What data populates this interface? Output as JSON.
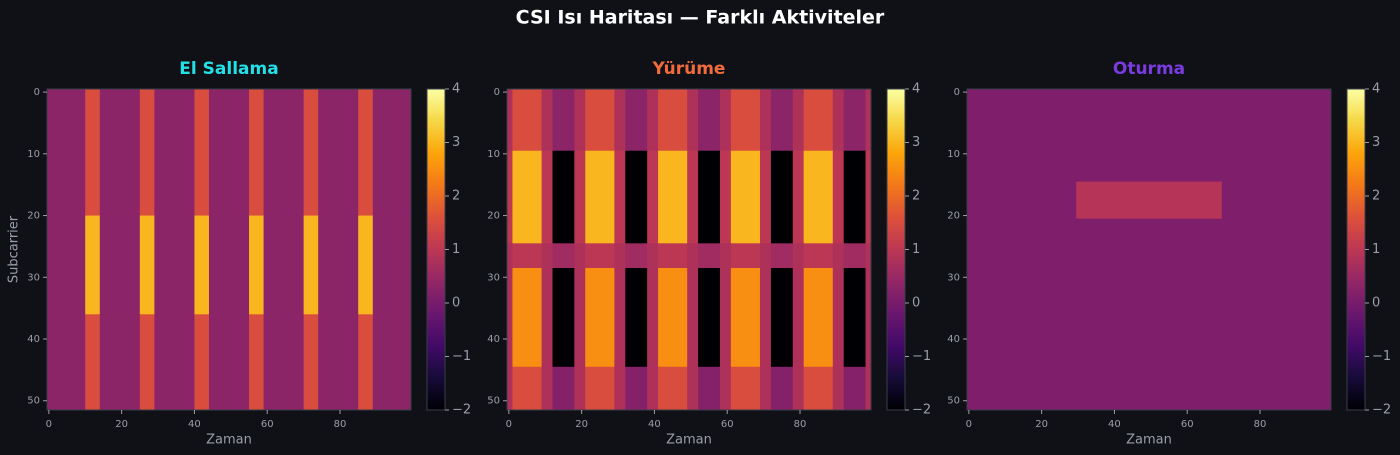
{
  "title": "CSI Isı Haritası — Farklı Aktiviteler",
  "chart_data": [
    {
      "type": "heatmap",
      "title": "El Sallama",
      "title_color": "#22e0e6",
      "xlabel": "Zaman",
      "ylabel": "Subcarrier",
      "colormap": "inferno",
      "clim": [
        -2,
        4
      ],
      "x_edges": [
        -0.5,
        10,
        14,
        25,
        29,
        40,
        44,
        55,
        59,
        70,
        74,
        85,
        89,
        99.5
      ],
      "y_edges": [
        -0.5,
        20,
        36,
        51.5
      ],
      "z": [
        [
          0.3,
          1.5,
          0.3,
          1.5,
          0.3,
          1.5,
          0.3,
          1.5,
          0.3,
          1.5,
          0.3,
          1.5,
          0.3
        ],
        [
          0.3,
          3,
          0.3,
          3,
          0.3,
          3,
          0.3,
          3,
          0.3,
          3,
          0.3,
          3,
          0.3
        ],
        [
          0.3,
          1.5,
          0.3,
          1.5,
          0.3,
          1.5,
          0.3,
          1.5,
          0.3,
          1.5,
          0.3,
          1.5,
          0.3
        ]
      ],
      "xlim": [
        -0.5,
        99.5
      ],
      "ylim": [
        51.5,
        -0.5
      ],
      "xticks": [
        0,
        20,
        40,
        60,
        80
      ],
      "yticks": [
        0,
        10,
        20,
        30,
        40,
        50
      ],
      "cticks": [
        {
          "value": -2,
          "label": "−2"
        },
        {
          "value": -1,
          "label": "−1"
        },
        0,
        1,
        2,
        3,
        4
      ]
    },
    {
      "type": "heatmap",
      "title": "Yürüme",
      "title_color": "#f26b3a",
      "xlabel": "Zaman",
      "colormap": "inferno",
      "clim": [
        -2,
        4
      ],
      "x_edges": [
        -0.5,
        1,
        9,
        12,
        18,
        21,
        29,
        32,
        38,
        41,
        49,
        52,
        58,
        61,
        69,
        72,
        78,
        81,
        89,
        92,
        98,
        99.5
      ],
      "y_edges": [
        -0.5,
        9.5,
        24.5,
        28.5,
        44.5,
        51.5
      ],
      "z": [
        [
          0.8,
          1.5,
          0.8,
          0.3,
          0.8,
          1.5,
          0.8,
          0.3,
          0.8,
          1.5,
          0.8,
          0.3,
          0.8,
          1.5,
          0.8,
          0.3,
          0.8,
          1.5,
          0.8,
          0.3,
          0.8
        ],
        [
          1,
          3,
          1,
          -2,
          1,
          3,
          1,
          -2,
          1,
          3,
          1,
          -2,
          1,
          3,
          1,
          -2,
          1,
          3,
          1,
          -2,
          1
        ],
        [
          0.8,
          1,
          0.8,
          0.6,
          0.8,
          1,
          0.8,
          0.6,
          0.8,
          1,
          0.8,
          0.6,
          0.8,
          1,
          0.8,
          0.6,
          0.8,
          1,
          0.8,
          0.6,
          0.8
        ],
        [
          0.8,
          2.5,
          0.8,
          -2,
          0.8,
          2.5,
          0.8,
          -2,
          0.8,
          2.5,
          0.8,
          -2,
          0.8,
          2.5,
          0.8,
          -2,
          0.8,
          2.5,
          0.8,
          -2,
          0.8
        ],
        [
          0.8,
          1.5,
          0.8,
          0.2,
          0.8,
          1.5,
          0.8,
          0.2,
          0.8,
          1.5,
          0.8,
          0.2,
          0.8,
          1.5,
          0.8,
          0.2,
          0.8,
          1.5,
          0.8,
          0.2,
          0.8
        ]
      ],
      "xlim": [
        -0.5,
        99.5
      ],
      "ylim": [
        51.5,
        -0.5
      ],
      "xticks": [
        0,
        20,
        40,
        60,
        80
      ],
      "yticks": [
        0,
        10,
        20,
        30,
        40,
        50
      ],
      "cticks": [
        {
          "value": -2,
          "label": "−2"
        },
        {
          "value": -1,
          "label": "−1"
        },
        0,
        1,
        2,
        3,
        4
      ]
    },
    {
      "type": "heatmap",
      "title": "Oturma",
      "title_color": "#7a3be0",
      "xlabel": "Zaman",
      "colormap": "inferno",
      "clim": [
        -2,
        4
      ],
      "x_edges": [
        -0.5,
        29.5,
        69.5,
        99.5
      ],
      "y_edges": [
        -0.5,
        14.5,
        20.5,
        51.5
      ],
      "z": [
        [
          0.1,
          0.1,
          0.1
        ],
        [
          0.1,
          0.9,
          0.1
        ],
        [
          0.1,
          0.1,
          0.1
        ]
      ],
      "xlim": [
        -0.5,
        99.5
      ],
      "ylim": [
        51.5,
        -0.5
      ],
      "xticks": [
        0,
        20,
        40,
        60,
        80
      ],
      "yticks": [
        0,
        10,
        20,
        30,
        40,
        50
      ],
      "cticks": [
        {
          "value": -2,
          "label": "−2"
        },
        {
          "value": -1,
          "label": "−1"
        },
        0,
        1,
        2,
        3,
        4
      ]
    }
  ]
}
